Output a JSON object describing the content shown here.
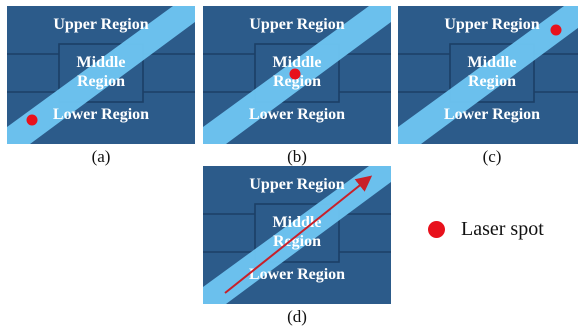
{
  "regions": {
    "upper": "Upper Region",
    "middle_line1": "Middle",
    "middle_line2": "Region",
    "lower": "Lower Region"
  },
  "panels": [
    {
      "caption": "(a)",
      "spot": "lower region"
    },
    {
      "caption": "(b)",
      "spot": "middle region"
    },
    {
      "caption": "(c)",
      "spot": "upper region"
    },
    {
      "caption": "(d)",
      "spot": "scan path from lower region to upper region"
    }
  ],
  "legend": {
    "label": "Laser spot"
  },
  "colors": {
    "background": "#2c5b8a",
    "grid_line": "#1c3f66",
    "beam_band": "#6fc6f2",
    "label_text": "#ffffff",
    "laser_spot": "#e8111c",
    "scan_arrow": "#c8202a"
  }
}
